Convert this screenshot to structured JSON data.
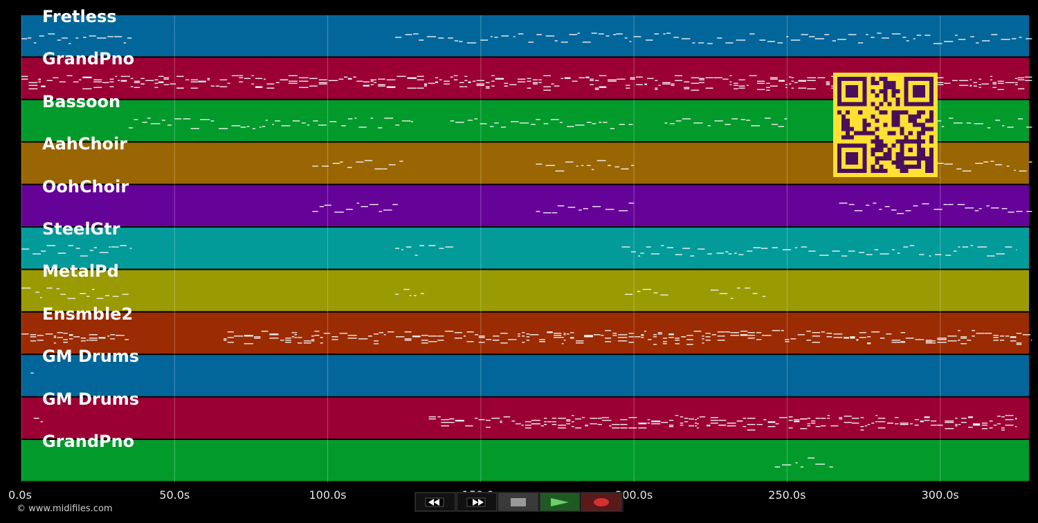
{
  "colors": {
    "background": "#000000",
    "blue": "#03669a",
    "crimson": "#9a0033",
    "green": "#039a2c",
    "brown": "#9a6603",
    "purple": "#650399",
    "teal": "#039a9a",
    "olive": "#9a9a03",
    "rust": "#9a2b03",
    "qr_bg": "#ffe033",
    "qr_fg": "#4a0f5a"
  },
  "tracks": [
    {
      "label": "Fretless",
      "color": "blue"
    },
    {
      "label": "GrandPno",
      "color": "crimson"
    },
    {
      "label": "Bassoon",
      "color": "green"
    },
    {
      "label": "AahChoir",
      "color": "brown"
    },
    {
      "label": "OohChoir",
      "color": "purple"
    },
    {
      "label": "SteelGtr",
      "color": "teal"
    },
    {
      "label": "MetalPd",
      "color": "olive"
    },
    {
      "label": "Ensmble2",
      "color": "rust"
    },
    {
      "label": "GM Drums",
      "color": "blue"
    },
    {
      "label": "GM Drums",
      "color": "crimson"
    },
    {
      "label": "GrandPno",
      "color": "green"
    }
  ],
  "time_axis": {
    "ticks": [
      "0.0s",
      "50.0s",
      "100.0s",
      "150.0s",
      "200.0s",
      "250.0s",
      "300.0s"
    ],
    "tick_values": [
      0,
      50,
      100,
      150,
      200,
      250,
      300
    ],
    "max_seconds": 329
  },
  "transport": {
    "rewind_icon": "rewind-icon",
    "forward_icon": "fast-forward-icon",
    "stop_icon": "stop-icon",
    "play_icon": "play-icon",
    "record_icon": "record-icon"
  },
  "copyright": "© www.midifiles.com"
}
